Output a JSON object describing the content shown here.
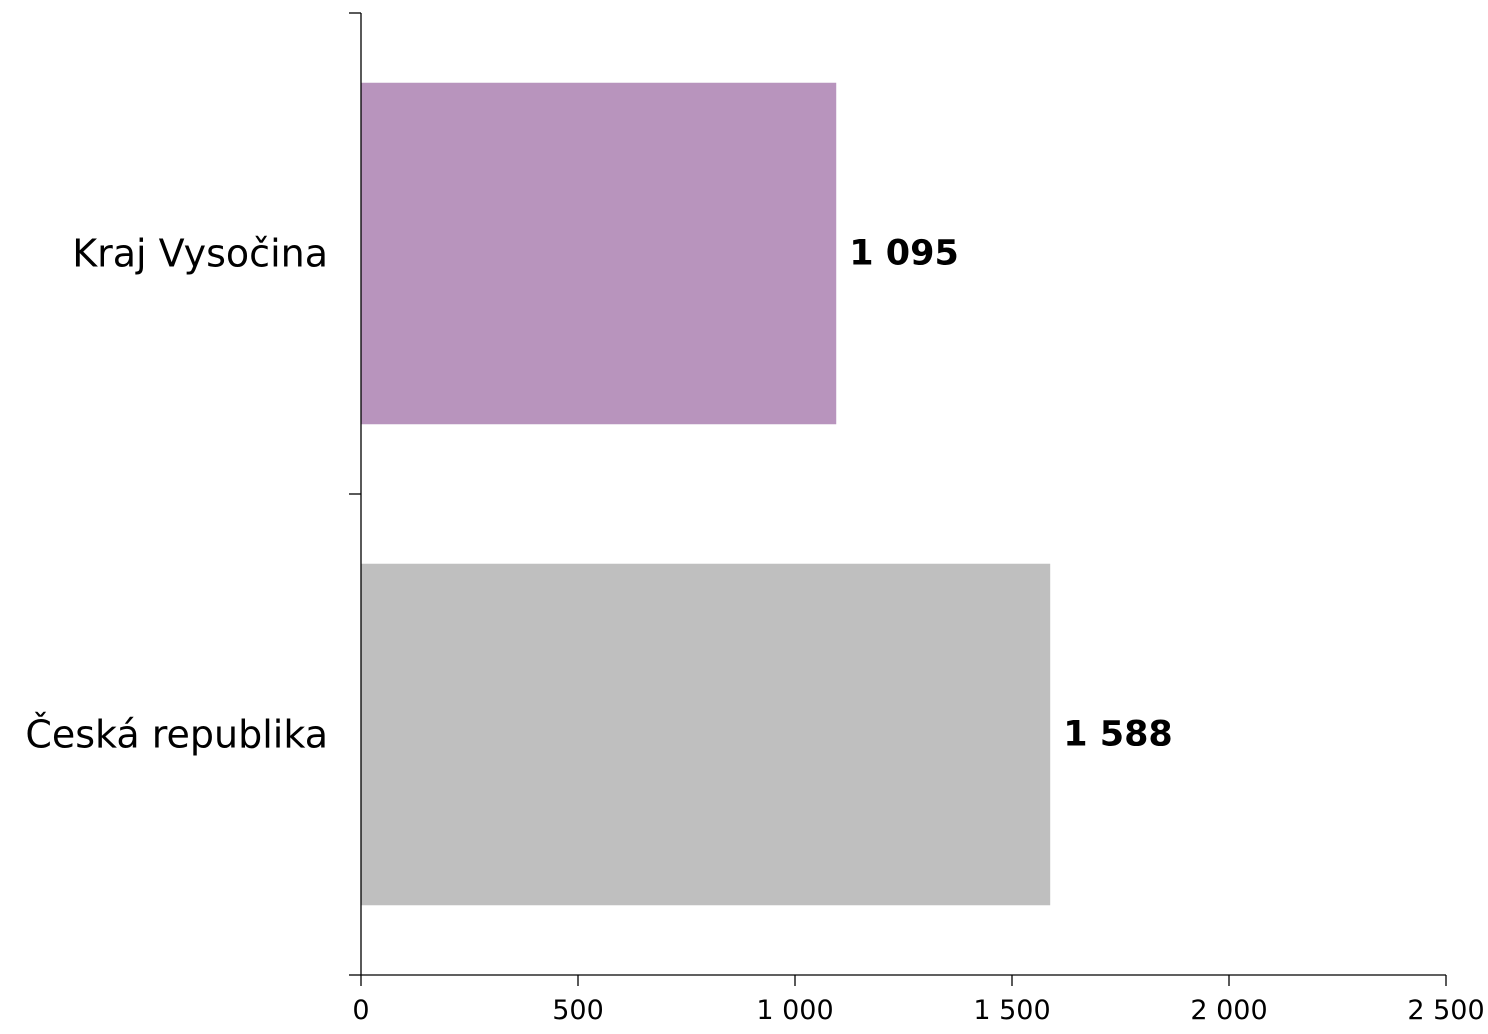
{
  "chart_data": {
    "type": "bar",
    "orientation": "horizontal",
    "categories": [
      "Kraj Vysočina",
      "Česká republika"
    ],
    "values": [
      1095,
      1588
    ],
    "value_labels": [
      "1 095",
      "1 588"
    ],
    "bar_colors": [
      "#b894bd",
      "#bfbfbf"
    ],
    "xlim": [
      0,
      2500
    ],
    "x_ticks": [
      0,
      500,
      1000,
      1500,
      2000,
      2500
    ],
    "x_tick_labels": [
      "0",
      "500",
      "1 000",
      "1 500",
      "2 000",
      "2 500"
    ],
    "title": "",
    "xlabel": "",
    "ylabel": "",
    "grid": false,
    "legend": false
  }
}
